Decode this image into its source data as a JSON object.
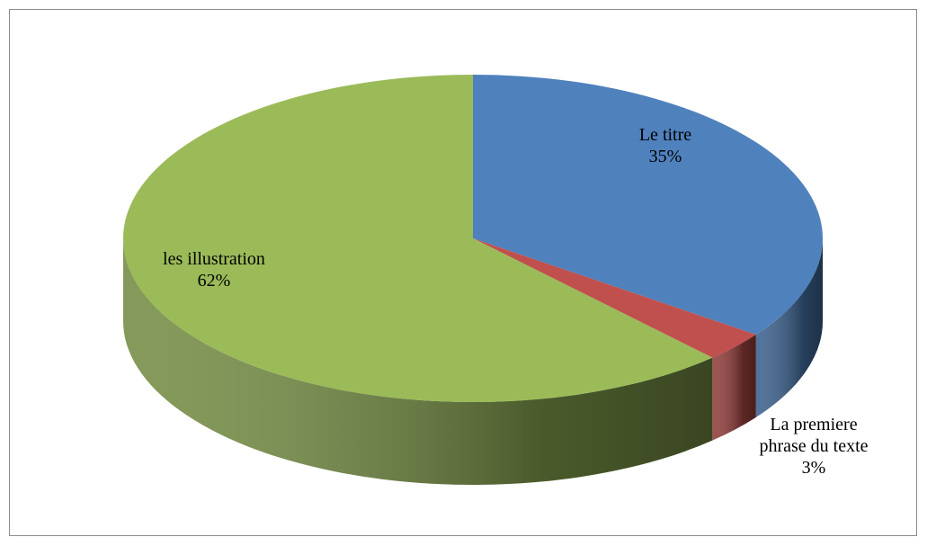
{
  "chart_data": {
    "type": "pie3d",
    "categories": [
      "Le titre",
      "La premiere phrase du texte",
      "les illustration"
    ],
    "values": [
      35,
      3,
      62
    ],
    "value_labels": [
      "35%",
      "3%",
      "62%"
    ],
    "colors": [
      "#4f81bd",
      "#c0504d",
      "#9bbb59"
    ]
  }
}
